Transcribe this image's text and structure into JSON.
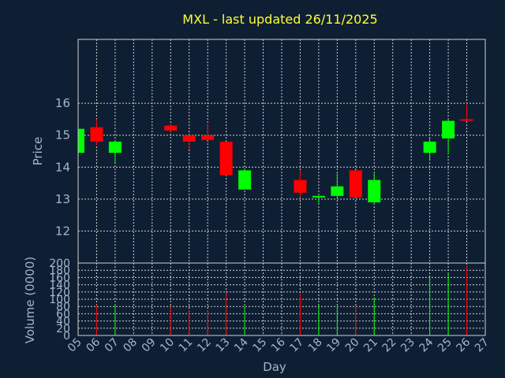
{
  "chart_data": {
    "type": "candlestick",
    "title": "MXL - last updated 26/11/2025",
    "xlabel": "Day",
    "ylabel_price": "Price",
    "ylabel_volume": "Volume (0000)",
    "x_ticks": [
      "05",
      "06",
      "07",
      "08",
      "09",
      "10",
      "11",
      "12",
      "13",
      "14",
      "15",
      "16",
      "17",
      "18",
      "19",
      "20",
      "21",
      "22",
      "23",
      "24",
      "25",
      "26",
      "27"
    ],
    "price_ylim": [
      11,
      18
    ],
    "price_ticks": [
      12,
      13,
      14,
      15,
      16
    ],
    "volume_ylim": [
      0,
      200
    ],
    "volume_ticks": [
      0,
      20,
      40,
      60,
      80,
      100,
      120,
      140,
      160,
      180,
      200
    ],
    "up_color": "#00ff00",
    "down_color": "#ff0000",
    "grid": true,
    "candles": [
      {
        "day": 5,
        "open": 14.45,
        "high": 15.2,
        "low": 14.45,
        "close": 15.2,
        "volume": 0
      },
      {
        "day": 6,
        "open": 15.25,
        "high": 15.5,
        "low": 14.7,
        "close": 14.8,
        "volume": 85
      },
      {
        "day": 7,
        "open": 14.45,
        "high": 14.85,
        "low": 14.15,
        "close": 14.8,
        "volume": 85
      },
      {
        "day": 10,
        "open": 15.3,
        "high": 15.35,
        "low": 15.1,
        "close": 15.15,
        "volume": 80
      },
      {
        "day": 11,
        "open": 15.0,
        "high": 15.0,
        "low": 14.55,
        "close": 14.8,
        "volume": 70
      },
      {
        "day": 12,
        "open": 15.0,
        "high": 15.35,
        "low": 14.85,
        "close": 14.85,
        "volume": 70
      },
      {
        "day": 13,
        "open": 14.8,
        "high": 14.8,
        "low": 13.75,
        "close": 13.75,
        "volume": 120
      },
      {
        "day": 14,
        "open": 13.3,
        "high": 13.95,
        "low": 13.3,
        "close": 13.9,
        "volume": 80
      },
      {
        "day": 17,
        "open": 13.6,
        "high": 13.9,
        "low": 13.05,
        "close": 13.2,
        "volume": 115
      },
      {
        "day": 18,
        "open": 13.05,
        "high": 13.1,
        "low": 12.85,
        "close": 13.1,
        "volume": 85
      },
      {
        "day": 19,
        "open": 13.1,
        "high": 13.8,
        "low": 13.05,
        "close": 13.4,
        "volume": 80
      },
      {
        "day": 20,
        "open": 13.9,
        "high": 13.9,
        "low": 13.05,
        "close": 13.05,
        "volume": 80
      },
      {
        "day": 21,
        "open": 12.9,
        "high": 13.8,
        "low": 12.85,
        "close": 13.6,
        "volume": 105
      },
      {
        "day": 24,
        "open": 14.45,
        "high": 14.9,
        "low": 14.25,
        "close": 14.8,
        "volume": 160
      },
      {
        "day": 25,
        "open": 14.9,
        "high": 15.5,
        "low": 14.4,
        "close": 15.45,
        "volume": 170
      },
      {
        "day": 26,
        "open": 15.5,
        "high": 16.0,
        "low": 15.45,
        "close": 15.45,
        "volume": 190
      }
    ]
  }
}
